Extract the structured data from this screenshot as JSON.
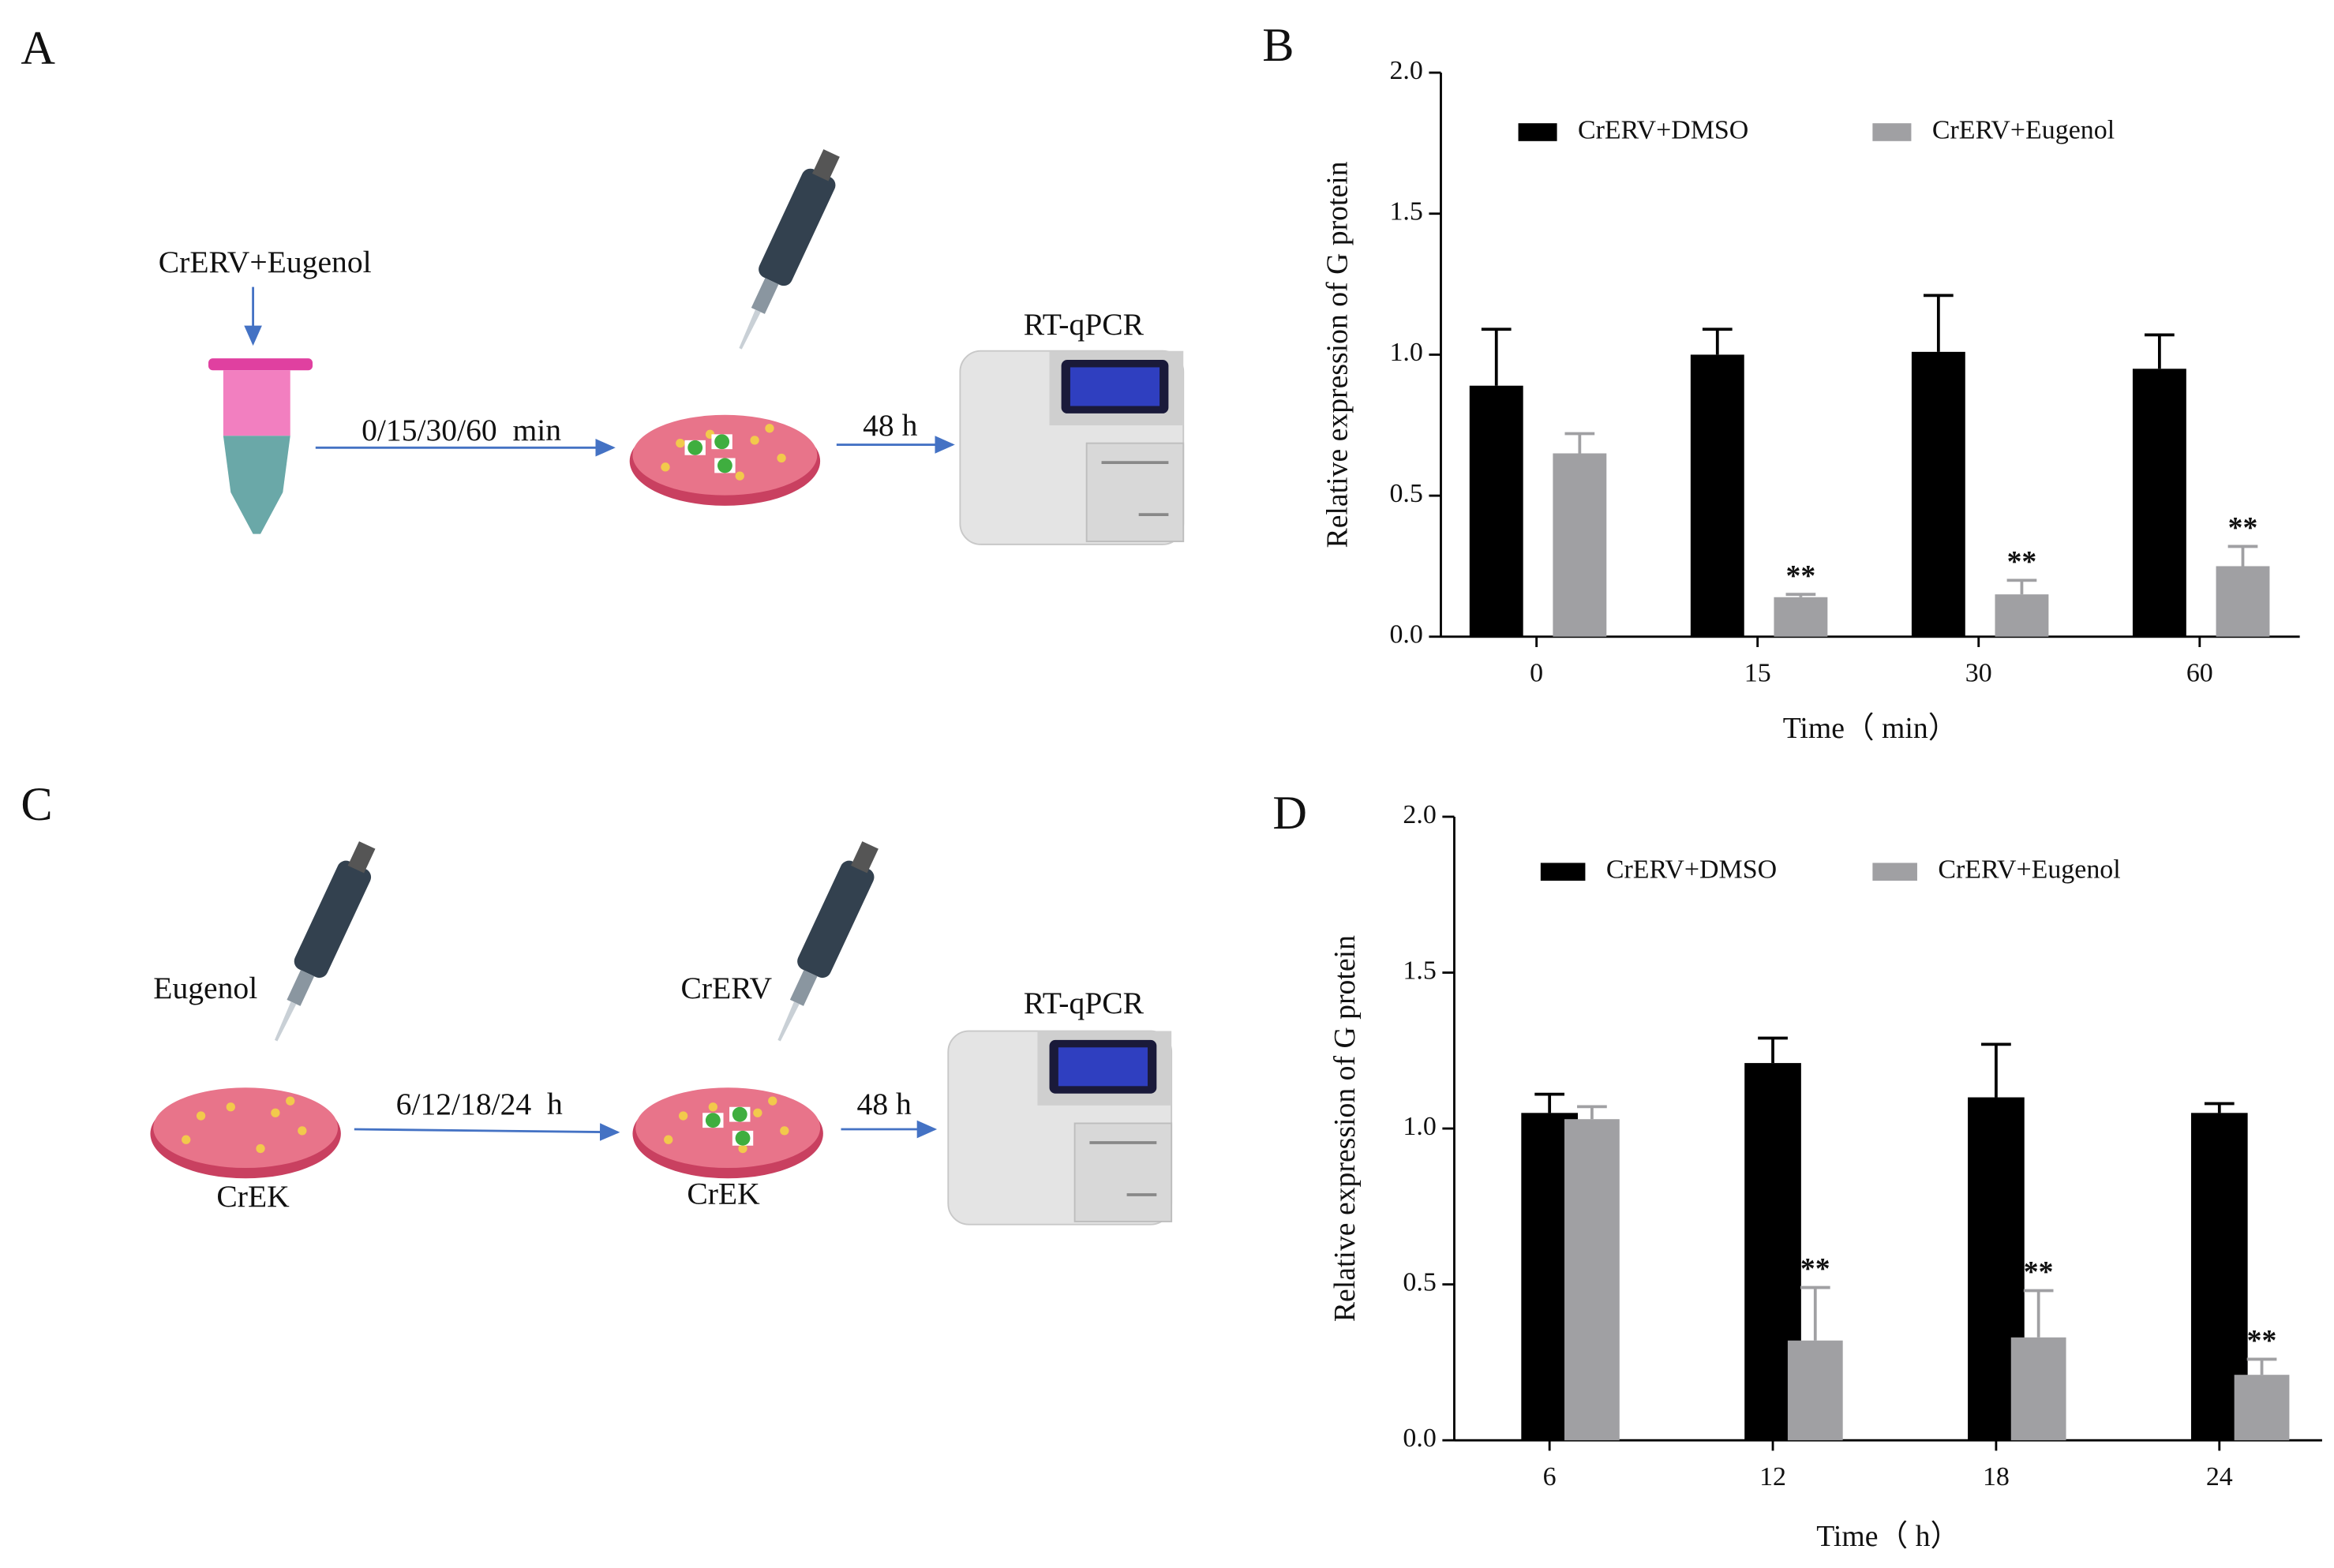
{
  "panel_labels": [
    "A",
    "B",
    "C",
    "D"
  ],
  "diagram_a": {
    "treatment": "CrERV+Eugenol",
    "incubation": "0/15/30/60  min",
    "culture": "48 h",
    "assay": "RT-qPCR"
  },
  "diagram_c": {
    "pretreatment": "Eugenol",
    "cells_1": "CrEK",
    "incubation": "6/12/18/24  h",
    "infection": "CrERV",
    "cells_2": "CrEK",
    "culture": "48 h",
    "assay": "RT-qPCR"
  },
  "chart_data": [
    {
      "type": "bar",
      "x_label": "Time（ min）",
      "y_label": "Relative expression of G protein",
      "categories": [
        "0",
        "15",
        "30",
        "60"
      ],
      "series": [
        {
          "name": "CrERV+DMSO",
          "color": "#000000",
          "values": [
            0.89,
            1.0,
            1.01,
            0.95
          ],
          "errors": [
            0.2,
            0.09,
            0.2,
            0.12
          ],
          "significance": [
            null,
            null,
            null,
            null
          ]
        },
        {
          "name": "CrERV+Eugenol",
          "color": "#a0a0a3",
          "values": [
            0.65,
            0.14,
            0.15,
            0.25
          ],
          "errors": [
            0.07,
            0.01,
            0.05,
            0.07
          ],
          "significance": [
            null,
            "**",
            "**",
            "**"
          ]
        }
      ],
      "ylim": [
        0,
        2
      ],
      "yticks": [
        {
          "value": 0,
          "label": "0.0"
        },
        0.5,
        {
          "value": 1,
          "label": "1.0"
        },
        1.5,
        {
          "value": 2,
          "label": "2.0"
        }
      ],
      "legend": "top"
    },
    {
      "type": "bar",
      "x_label": "Time（ h）",
      "y_label": "Relative expression of G protein",
      "categories": [
        "6",
        "12",
        "18",
        "24"
      ],
      "series": [
        {
          "name": "CrERV+DMSO",
          "color": "#000000",
          "values": [
            1.05,
            1.21,
            1.1,
            1.05
          ],
          "errors": [
            0.06,
            0.08,
            0.17,
            0.03
          ],
          "significance": [
            null,
            null,
            null,
            null
          ]
        },
        {
          "name": "CrERV+Eugenol",
          "color": "#a0a0a3",
          "values": [
            1.03,
            0.32,
            0.33,
            0.21
          ],
          "errors": [
            0.04,
            0.17,
            0.15,
            0.05
          ],
          "significance": [
            null,
            "**",
            "**",
            "**"
          ]
        }
      ],
      "ylim": [
        0,
        2
      ],
      "yticks": [
        {
          "value": 0,
          "label": "0.0"
        },
        0.5,
        {
          "value": 1,
          "label": "1.0"
        },
        1.5,
        {
          "value": 2,
          "label": "2.0"
        }
      ],
      "legend": "top"
    }
  ]
}
